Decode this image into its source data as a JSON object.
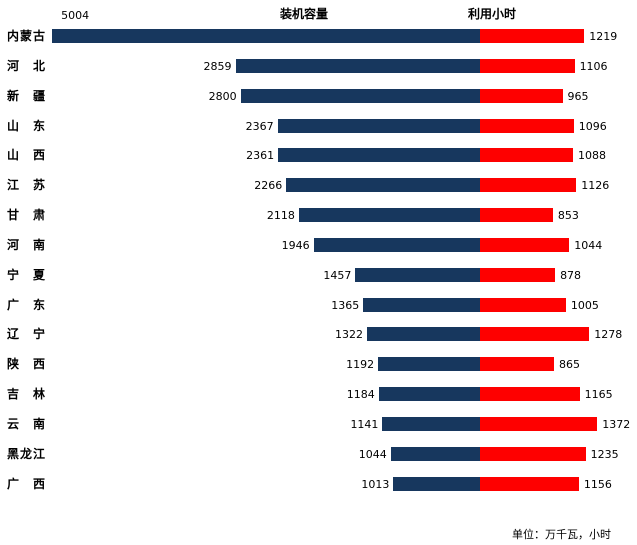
{
  "header": {
    "left_series_label": "装机容量",
    "right_series_label": "利用小时"
  },
  "footer": {
    "unit_note": "单位：万千瓦，小时"
  },
  "chart_data": {
    "type": "bar",
    "subtype": "tornado",
    "title": "",
    "categories": [
      "内蒙古",
      "河北",
      "新疆",
      "山东",
      "山西",
      "江苏",
      "甘肃",
      "河南",
      "宁夏",
      "广东",
      "辽宁",
      "陕西",
      "吉林",
      "云南",
      "黑龙江",
      "广西"
    ],
    "series": [
      {
        "name": "装机容量",
        "side": "left",
        "color": "#17375E",
        "values": [
          5004,
          2859,
          2800,
          2367,
          2361,
          2266,
          2118,
          1946,
          1457,
          1365,
          1322,
          1192,
          1184,
          1141,
          1044,
          1013
        ]
      },
      {
        "name": "利用小时",
        "side": "right",
        "color": "#FE0000",
        "values": [
          1219,
          1106,
          965,
          1096,
          1088,
          1126,
          853,
          1044,
          878,
          1005,
          1278,
          865,
          1165,
          1372,
          1235,
          1156
        ]
      }
    ],
    "unit": "万千瓦, 小时",
    "axis": {
      "center_shared": true,
      "max_left": 5004,
      "max_right": 1372
    },
    "legend_position": "top",
    "grid": false,
    "data_labels": true
  }
}
